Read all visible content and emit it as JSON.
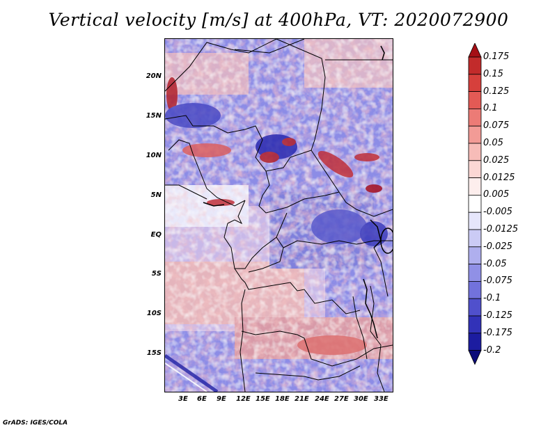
{
  "title": "Vertical velocity [m/s] at 400hPa, VT: 2020072900",
  "credit": "GrADS: IGES/COLA",
  "map": {
    "lat_labels": [
      "20N",
      "15N",
      "10N",
      "5N",
      "EQ",
      "5S",
      "10S",
      "15S"
    ],
    "lon_labels": [
      "3E",
      "6E",
      "9E",
      "12E",
      "15E",
      "18E",
      "21E",
      "24E",
      "27E",
      "30E",
      "33E"
    ],
    "field": "vertical velocity (shaded)",
    "boundaries": "country borders and coastlines"
  },
  "colorbar": {
    "levels": [
      "0.175",
      "0.15",
      "0.125",
      "0.1",
      "0.075",
      "0.05",
      "0.025",
      "0.0125",
      "0.005",
      "-0.005",
      "-0.0125",
      "-0.025",
      "-0.05",
      "-0.075",
      "-0.1",
      "-0.125",
      "-0.175",
      "-0.2"
    ],
    "colors": [
      "#a50f15",
      "#c22b2b",
      "#d6403c",
      "#e35a55",
      "#ec7b76",
      "#f29b96",
      "#f7bcb8",
      "#fbd7d4",
      "#fdeeed",
      "#ffffff",
      "#e6e6fb",
      "#cbcbf5",
      "#afafee",
      "#9090e6",
      "#7272dc",
      "#5050cc",
      "#3232b8",
      "#1c1ca0",
      "#0c0c7a"
    ]
  }
}
